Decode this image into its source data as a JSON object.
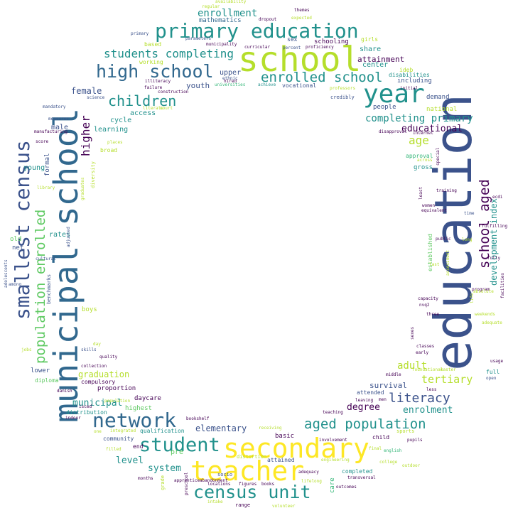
{
  "palette": {
    "dark_purple": "#440154",
    "indigo": "#3b528b",
    "blue": "#31688e",
    "teal": "#21918c",
    "green": "#35b779",
    "light_green": "#5ec962",
    "lime": "#b5de2b",
    "yellow": "#fde725",
    "background": "#ffffff"
  },
  "words": [
    {
      "text": "education",
      "color": "#3b528b"
    },
    {
      "text": "school",
      "color": "#b5de2b"
    },
    {
      "text": "municipal school",
      "color": "#31688e"
    },
    {
      "text": "secondary",
      "color": "#fde725"
    },
    {
      "text": "teacher",
      "color": "#fde725"
    },
    {
      "text": "primary education",
      "color": "#21918c"
    },
    {
      "text": "year",
      "color": "#21918c"
    },
    {
      "text": "smallest census",
      "color": "#3b528b"
    },
    {
      "text": "high school",
      "color": "#31688e"
    },
    {
      "text": "census unit",
      "color": "#21918c"
    },
    {
      "text": "network",
      "color": "#31688e"
    },
    {
      "text": "student",
      "color": "#21918c"
    },
    {
      "text": "population enrolled",
      "color": "#5ec962"
    },
    {
      "text": "enrolled school",
      "color": "#21918c"
    },
    {
      "text": "school aged",
      "color": "#440154"
    },
    {
      "text": "aged population",
      "color": "#21918c"
    },
    {
      "text": "children",
      "color": "#21918c"
    },
    {
      "text": "students completing",
      "color": "#21918c"
    },
    {
      "text": "literacy",
      "color": "#3b528b"
    },
    {
      "text": "higher",
      "color": "#440154"
    },
    {
      "text": "enrollment",
      "color": "#21918c"
    },
    {
      "text": "age",
      "color": "#b5de2b"
    },
    {
      "text": "completing primary",
      "color": "#21918c"
    },
    {
      "text": "tertiary",
      "color": "#b5de2b"
    },
    {
      "text": "adult",
      "color": "#b5de2b"
    },
    {
      "text": "development index",
      "color": "#21918c"
    },
    {
      "text": "enrolment",
      "color": "#21918c"
    },
    {
      "text": "municipal",
      "color": "#21918c"
    },
    {
      "text": "educational",
      "color": "#440154"
    },
    {
      "text": "degree",
      "color": "#440154"
    },
    {
      "text": "elementary",
      "color": "#3b528b"
    },
    {
      "text": "system",
      "color": "#21918c"
    },
    {
      "text": "level",
      "color": "#21918c"
    },
    {
      "text": "graduation",
      "color": "#b5de2b"
    },
    {
      "text": "survival",
      "color": "#3b528b"
    },
    {
      "text": "female",
      "color": "#3b528b"
    },
    {
      "text": "youth",
      "color": "#3b528b"
    },
    {
      "text": "attainment",
      "color": "#440154"
    },
    {
      "text": "share",
      "color": "#21918c"
    },
    {
      "text": "center",
      "color": "#21918c"
    },
    {
      "text": "upper",
      "color": "#3b528b"
    },
    {
      "text": "mathematics",
      "color": "#31688e"
    },
    {
      "text": "schooling",
      "color": "#440154"
    },
    {
      "text": "access",
      "color": "#21918c"
    },
    {
      "text": "cycle",
      "color": "#21918c"
    },
    {
      "text": "learning",
      "color": "#21918c"
    },
    {
      "text": "male",
      "color": "#3b528b"
    },
    {
      "text": "young",
      "color": "#21918c"
    },
    {
      "text": "formal",
      "color": "#3b528b"
    },
    {
      "text": "rates",
      "color": "#21918c"
    },
    {
      "text": "old",
      "color": "#5ec962"
    },
    {
      "text": "net",
      "color": "#3b528b"
    },
    {
      "text": "national",
      "color": "#b5de2b"
    },
    {
      "text": "people",
      "color": "#3b528b"
    },
    {
      "text": "demand",
      "color": "#3b528b"
    },
    {
      "text": "including",
      "color": "#3b528b"
    },
    {
      "text": "vocational",
      "color": "#3b528b"
    },
    {
      "text": "gross",
      "color": "#21918c"
    },
    {
      "text": "approval",
      "color": "#35b779"
    },
    {
      "text": "highest",
      "color": "#5ec962"
    },
    {
      "text": "daycare",
      "color": "#440154"
    },
    {
      "text": "proportion",
      "color": "#440154"
    },
    {
      "text": "compulsory",
      "color": "#440154"
    },
    {
      "text": "lower",
      "color": "#3b528b"
    },
    {
      "text": "distribution",
      "color": "#21918c"
    },
    {
      "text": "qualification",
      "color": "#21918c"
    },
    {
      "text": "community",
      "color": "#3b528b"
    },
    {
      "text": "end",
      "color": "#440154"
    },
    {
      "text": "pre",
      "color": "#5ec962"
    },
    {
      "text": "basic",
      "color": "#440154"
    },
    {
      "text": "attained",
      "color": "#3b528b"
    },
    {
      "text": "child",
      "color": "#440154"
    },
    {
      "text": "care",
      "color": "#35b779"
    },
    {
      "text": "completed",
      "color": "#21918c"
    },
    {
      "text": "boys",
      "color": "#b5de2b"
    },
    {
      "text": "diploma",
      "color": "#5ec962"
    },
    {
      "text": "full",
      "color": "#21918c"
    },
    {
      "text": "attended",
      "color": "#3b528b"
    },
    {
      "text": "established",
      "color": "#5ec962"
    },
    {
      "text": "girls",
      "color": "#b5de2b"
    },
    {
      "text": "sex",
      "color": "#3b528b"
    },
    {
      "text": "based",
      "color": "#b5de2b"
    },
    {
      "text": "working",
      "color": "#b5de2b"
    },
    {
      "text": "illiteracy",
      "color": "#440154"
    },
    {
      "text": "hired",
      "color": "#440154"
    },
    {
      "text": "achieve",
      "color": "#21918c"
    },
    {
      "text": "credibly",
      "color": "#3b528b"
    },
    {
      "text": "professors",
      "color": "#b5de2b"
    },
    {
      "text": "ideb",
      "color": "#b5de2b"
    },
    {
      "text": "disabilities",
      "color": "#21918c"
    },
    {
      "text": "construction",
      "color": "#440154"
    },
    {
      "text": "failure",
      "color": "#440154"
    },
    {
      "text": "universities",
      "color": "#35b779"
    },
    {
      "text": "science",
      "color": "#3b528b"
    },
    {
      "text": "court",
      "color": "#b5de2b"
    },
    {
      "text": "literate",
      "color": "#b5de2b"
    },
    {
      "text": "mandatory",
      "color": "#3b528b"
    },
    {
      "text": "measures",
      "color": "#3b528b"
    },
    {
      "text": "manufacturing",
      "color": "#440154"
    },
    {
      "text": "score",
      "color": "#440154"
    },
    {
      "text": "places",
      "color": "#b5de2b"
    },
    {
      "text": "broad",
      "color": "#b5de2b"
    },
    {
      "text": "diversity",
      "color": "#b5de2b"
    },
    {
      "text": "graduates",
      "color": "#b5de2b"
    },
    {
      "text": "library",
      "color": "#b5de2b"
    },
    {
      "text": "adjusted",
      "color": "#3b528b"
    },
    {
      "text": "cultural",
      "color": "#3b528b"
    },
    {
      "text": "benchmarks",
      "color": "#3b528b"
    },
    {
      "text": "adolescents",
      "color": "#3b528b"
    },
    {
      "text": "among",
      "color": "#3b528b"
    },
    {
      "text": "jobs",
      "color": "#b5de2b"
    },
    {
      "text": "skills",
      "color": "#3b528b"
    },
    {
      "text": "day",
      "color": "#b5de2b"
    },
    {
      "text": "quality",
      "color": "#440154"
    },
    {
      "text": "collection",
      "color": "#440154"
    },
    {
      "text": "danish",
      "color": "#440154"
    },
    {
      "text": "isced",
      "color": "#440154"
    },
    {
      "text": "indoor",
      "color": "#440154"
    },
    {
      "text": "one",
      "color": "#b5de2b"
    },
    {
      "text": "integrated",
      "color": "#b5de2b"
    },
    {
      "text": "filled",
      "color": "#b5de2b"
    },
    {
      "text": "population",
      "color": "#b5de2b"
    },
    {
      "text": "bookshelf",
      "color": "#440154"
    },
    {
      "text": "receiving",
      "color": "#b5de2b"
    },
    {
      "text": "distortion",
      "color": "#b5de2b"
    },
    {
      "text": "sports",
      "color": "#b5de2b"
    },
    {
      "text": "pupils",
      "color": "#440154"
    },
    {
      "text": "english",
      "color": "#35b779"
    },
    {
      "text": "final",
      "color": "#b5de2b"
    },
    {
      "text": "college",
      "color": "#b5de2b"
    },
    {
      "text": "outdoor",
      "color": "#b5de2b"
    },
    {
      "text": "involvement",
      "color": "#440154"
    },
    {
      "text": "teaching",
      "color": "#440154"
    },
    {
      "text": "engineering",
      "color": "#b5de2b"
    },
    {
      "text": "adequacy",
      "color": "#440154"
    },
    {
      "text": "lifelong",
      "color": "#b5de2b"
    },
    {
      "text": "outcomes",
      "color": "#440154"
    },
    {
      "text": "transversal",
      "color": "#440154"
    },
    {
      "text": "books",
      "color": "#440154"
    },
    {
      "text": "figures",
      "color": "#440154"
    },
    {
      "text": "locations",
      "color": "#440154"
    },
    {
      "text": "range",
      "color": "#440154"
    },
    {
      "text": "volunteer",
      "color": "#b5de2b"
    },
    {
      "text": "intake",
      "color": "#b5de2b"
    },
    {
      "text": "preschool",
      "color": "#440154"
    },
    {
      "text": "apprentice",
      "color": "#440154"
    },
    {
      "text": "abandonment",
      "color": "#440154"
    },
    {
      "text": "months",
      "color": "#440154"
    },
    {
      "text": "grade",
      "color": "#b5de2b"
    },
    {
      "text": "socio",
      "color": "#3b528b"
    },
    {
      "text": "leaving",
      "color": "#440154"
    },
    {
      "text": "men",
      "color": "#440154"
    },
    {
      "text": "middle",
      "color": "#440154"
    },
    {
      "text": "less",
      "color": "#440154"
    },
    {
      "text": "foundational",
      "color": "#b5de2b"
    },
    {
      "text": "master",
      "color": "#b5de2b"
    },
    {
      "text": "open",
      "color": "#3b528b"
    },
    {
      "text": "early",
      "color": "#440154"
    },
    {
      "text": "classes",
      "color": "#440154"
    },
    {
      "text": "usage",
      "color": "#440154"
    },
    {
      "text": "sexes",
      "color": "#440154"
    },
    {
      "text": "weekends",
      "color": "#b5de2b"
    },
    {
      "text": "adequate",
      "color": "#b5de2b"
    },
    {
      "text": "three",
      "color": "#440154"
    },
    {
      "text": "program",
      "color": "#440154"
    },
    {
      "text": "nvq2",
      "color": "#440154"
    },
    {
      "text": "capacity",
      "color": "#440154"
    },
    {
      "text": "absolute",
      "color": "#b5de2b"
    },
    {
      "text": "life",
      "color": "#b5de2b"
    },
    {
      "text": "facilities",
      "color": "#440154"
    },
    {
      "text": "fully",
      "color": "#440154"
    },
    {
      "text": "fulfilling",
      "color": "#440154"
    },
    {
      "text": "ecdi",
      "color": "#440154"
    },
    {
      "text": "time",
      "color": "#3b528b"
    },
    {
      "text": "long",
      "color": "#b5de2b"
    },
    {
      "text": "public",
      "color": "#440154"
    },
    {
      "text": "equivalent",
      "color": "#440154"
    },
    {
      "text": "women",
      "color": "#440154"
    },
    {
      "text": "training",
      "color": "#440154"
    },
    {
      "text": "least",
      "color": "#440154"
    },
    {
      "text": "special",
      "color": "#440154"
    },
    {
      "text": "across",
      "color": "#b5de2b"
    },
    {
      "text": "internet",
      "color": "#440154"
    },
    {
      "text": "disapproval",
      "color": "#440154"
    },
    {
      "text": "initial",
      "color": "#440154"
    },
    {
      "text": "last",
      "color": "#b5de2b"
    },
    {
      "text": "assessment",
      "color": "#b5de2b"
    },
    {
      "text": "availability",
      "color": "#b5de2b"
    },
    {
      "text": "regular",
      "color": "#b5de2b"
    },
    {
      "text": "themes",
      "color": "#440154"
    },
    {
      "text": "expected",
      "color": "#b5de2b"
    },
    {
      "text": "dropout",
      "color": "#440154"
    },
    {
      "text": "primary",
      "color": "#3b528b"
    },
    {
      "text": "parameters",
      "color": "#3b528b"
    },
    {
      "text": "percent",
      "color": "#3b528b"
    },
    {
      "text": "proficiency",
      "color": "#440154"
    },
    {
      "text": "curricular",
      "color": "#440154"
    },
    {
      "text": "municipality",
      "color": "#440154"
    },
    {
      "text": "ethnic",
      "color": "#3b528b"
    }
  ]
}
